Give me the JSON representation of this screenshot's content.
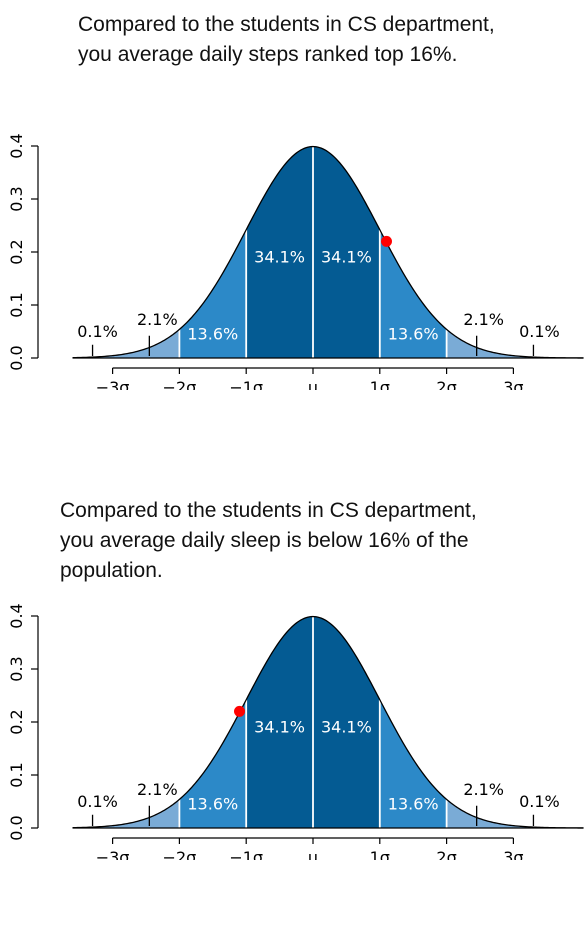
{
  "captions": [
    [
      "Compared to the students in CS department,",
      "you average daily steps ranked top 16%."
    ],
    [
      "Compared to the students in CS department,",
      "you average daily sleep is below 16% of the",
      "population."
    ]
  ],
  "chart_data": [
    {
      "type": "area",
      "distribution": "standard normal density",
      "xlim": [
        -3.6,
        4.05
      ],
      "ylim": [
        0,
        0.4
      ],
      "ytick_labels": [
        "0.0",
        "0.1",
        "0.2",
        "0.3",
        "0.4"
      ],
      "ytick_values": [
        0,
        0.1,
        0.2,
        0.3,
        0.4
      ],
      "xtick_values": [
        -3,
        -2,
        -1,
        0,
        1,
        2,
        3
      ],
      "xtick_labels": [
        "−3σ",
        "−2σ",
        "−1σ",
        "μ",
        "1σ",
        "2σ",
        "3σ"
      ],
      "bands": [
        {
          "from": -3,
          "to": -2,
          "label": "2.1%",
          "color": "#7aabd6",
          "label_style": "outside"
        },
        {
          "from": -2,
          "to": -1,
          "label": "13.6%",
          "color": "#2c89c8",
          "label_style": "inside"
        },
        {
          "from": -1,
          "to": 0,
          "label": "34.1%",
          "color": "#045b93",
          "label_style": "inside"
        },
        {
          "from": 0,
          "to": 1,
          "label": "34.1%",
          "color": "#045b93",
          "label_style": "inside"
        },
        {
          "from": 1,
          "to": 2,
          "label": "13.6%",
          "color": "#2c89c8",
          "label_style": "inside"
        },
        {
          "from": 2,
          "to": 3,
          "label": "2.1%",
          "color": "#7aabd6",
          "label_style": "outside"
        }
      ],
      "tail_labels": [
        {
          "x": -3.3,
          "label": "0.1%"
        },
        {
          "x": 3.3,
          "label": "0.1%"
        }
      ],
      "marker": {
        "x": 1.1,
        "y": 0.22,
        "color": "#ff0000"
      }
    },
    {
      "type": "area",
      "distribution": "standard normal density",
      "xlim": [
        -3.6,
        4.05
      ],
      "ylim": [
        0,
        0.4
      ],
      "ytick_labels": [
        "0.0",
        "0.1",
        "0.2",
        "0.3",
        "0.4"
      ],
      "ytick_values": [
        0,
        0.1,
        0.2,
        0.3,
        0.4
      ],
      "xtick_values": [
        -3,
        -2,
        -1,
        0,
        1,
        2,
        3
      ],
      "xtick_labels": [
        "−3σ",
        "−2σ",
        "−1σ",
        "μ",
        "1σ",
        "2σ",
        "3σ"
      ],
      "bands": [
        {
          "from": -3,
          "to": -2,
          "label": "2.1%",
          "color": "#7aabd6",
          "label_style": "outside"
        },
        {
          "from": -2,
          "to": -1,
          "label": "13.6%",
          "color": "#2c89c8",
          "label_style": "inside"
        },
        {
          "from": -1,
          "to": 0,
          "label": "34.1%",
          "color": "#045b93",
          "label_style": "inside"
        },
        {
          "from": 0,
          "to": 1,
          "label": "34.1%",
          "color": "#045b93",
          "label_style": "inside"
        },
        {
          "from": 1,
          "to": 2,
          "label": "13.6%",
          "color": "#2c89c8",
          "label_style": "inside"
        },
        {
          "from": 2,
          "to": 3,
          "label": "2.1%",
          "color": "#7aabd6",
          "label_style": "outside"
        }
      ],
      "tail_labels": [
        {
          "x": -3.3,
          "label": "0.1%"
        },
        {
          "x": 3.3,
          "label": "0.1%"
        }
      ],
      "marker": {
        "x": -1.1,
        "y": 0.22,
        "color": "#ff0000"
      }
    }
  ]
}
